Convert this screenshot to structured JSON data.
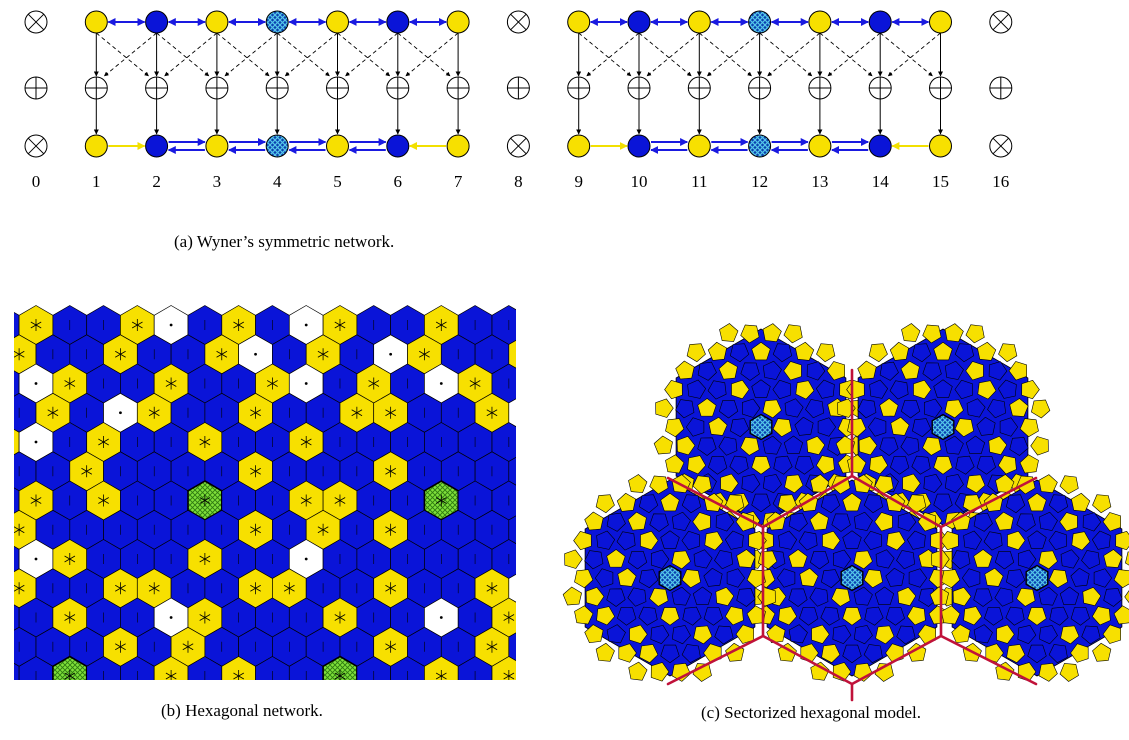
{
  "panel_a": {
    "caption": "(a) Wyner’s symmetric network.",
    "node_labels": [
      "0",
      "1",
      "2",
      "3",
      "4",
      "5",
      "6",
      "7",
      "8",
      "9",
      "10",
      "11",
      "12",
      "13",
      "14",
      "15",
      "16"
    ],
    "top_pattern": [
      "blank",
      "yellow",
      "blue",
      "yellow",
      "hatched",
      "yellow",
      "blue",
      "yellow",
      "blank",
      "yellow",
      "blue",
      "yellow",
      "hatched",
      "yellow",
      "blue",
      "yellow",
      "blank"
    ],
    "bottom_pattern": [
      "blank",
      "yellow",
      "blue",
      "yellow",
      "hatched",
      "yellow",
      "blue",
      "yellow",
      "blank",
      "yellow",
      "blue",
      "yellow",
      "hatched",
      "yellow",
      "blue",
      "yellow",
      "blank"
    ]
  },
  "panel_b": {
    "caption": "(b) Hexagonal network."
  },
  "panel_c": {
    "caption": "(c) Sectorized hexagonal model."
  },
  "colors": {
    "yellow": "#f7e000",
    "blue": "#0a14d8",
    "green": "#7fe03a",
    "hatch": "#3aa0c8",
    "crimson": "#c0123a",
    "arrow_yellow": "#f2e000",
    "arrow_blue": "#1a1ae0"
  }
}
